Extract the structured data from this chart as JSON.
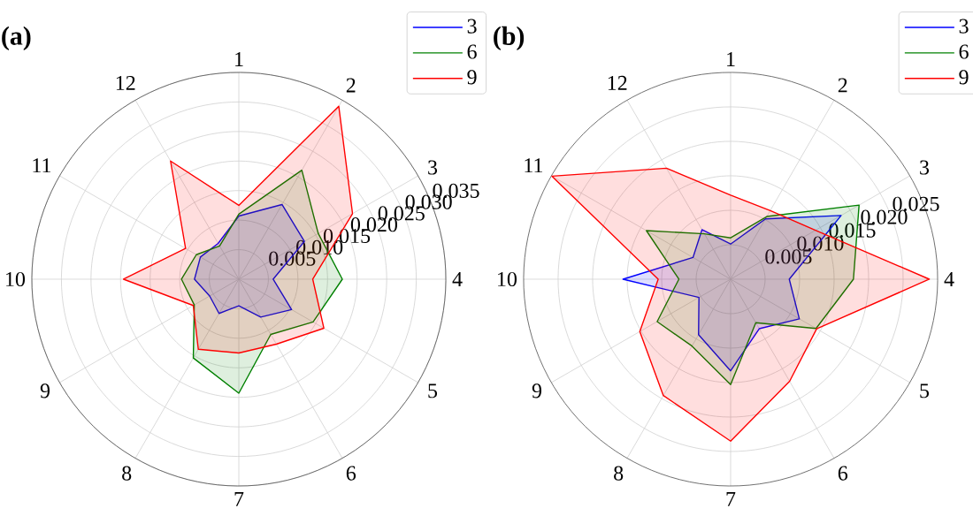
{
  "chart_data": [
    {
      "type": "radar",
      "title": "(a)",
      "categories": [
        "1",
        "2",
        "3",
        "4",
        "5",
        "6",
        "7",
        "8",
        "9",
        "10",
        "11",
        "12"
      ],
      "series": [
        {
          "name": "3",
          "color": "#0000ff",
          "values": [
            0.0107,
            0.0146,
            0.0128,
            0.0058,
            0.0103,
            0.0074,
            0.0045,
            0.0067,
            0.0057,
            0.0075,
            0.0075,
            0.007
          ]
        },
        {
          "name": "6",
          "color": "#008000",
          "values": [
            0.011,
            0.0213,
            0.0155,
            0.0175,
            0.0145,
            0.0108,
            0.0193,
            0.0154,
            0.0087,
            0.0097,
            0.0083,
            0.0065
          ]
        },
        {
          "name": "9",
          "color": "#ff0000",
          "values": [
            0.0125,
            0.0338,
            0.0222,
            0.0125,
            0.0166,
            0.0127,
            0.0125,
            0.0137,
            0.0089,
            0.0195,
            0.0104,
            0.0231
          ]
        }
      ],
      "ylim": [
        0,
        0.035
      ],
      "yticks": [
        0.005,
        {
          "value": 0.01,
          "label": "0.010"
        },
        0.015,
        {
          "value": 0.02,
          "label": "0.020"
        },
        0.025,
        {
          "value": 0.03,
          "label": "0.030"
        },
        0.035
      ],
      "grid": true,
      "legend": "top right"
    },
    {
      "type": "radar",
      "title": "(b)",
      "categories": [
        "1",
        "2",
        "3",
        "4",
        "5",
        "6",
        "7",
        "8",
        "9",
        "10",
        "11",
        "12"
      ],
      "series": [
        {
          "name": "3",
          "color": "#0000ff",
          "values": [
            0.0051,
            0.0101,
            0.0185,
            0.0085,
            0.0115,
            0.0083,
            0.0133,
            0.0093,
            0.0053,
            0.0156,
            0.0063,
            0.0083
          ]
        },
        {
          "name": "6",
          "color": "#008000",
          "values": [
            0.006,
            0.0105,
            0.0215,
            0.0178,
            0.0143,
            0.0073,
            0.0153,
            0.0112,
            0.0123,
            0.0075,
            0.0141,
            0.0076
          ]
        },
        {
          "name": "9",
          "color": "#ff0000",
          "values": [
            0.0122,
            0.0115,
            0.0142,
            0.0288,
            0.0144,
            0.0171,
            0.0235,
            0.0195,
            0.0152,
            0.0105,
            0.0299,
            0.0186
          ]
        }
      ],
      "ylim": [
        0,
        0.03
      ],
      "yticks": [
        0.005,
        {
          "value": 0.01,
          "label": "0.010"
        },
        0.015,
        {
          "value": 0.02,
          "label": "0.020"
        },
        0.025
      ],
      "grid": true,
      "legend": "top right"
    }
  ]
}
